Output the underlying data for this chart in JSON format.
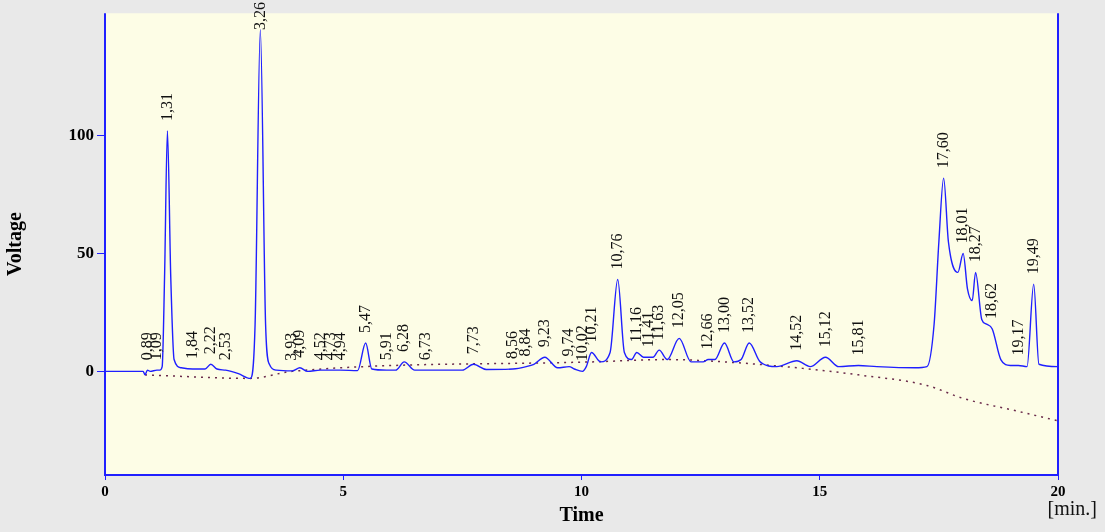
{
  "chart_data": {
    "type": "line",
    "xlabel": "Time",
    "ylabel": "Voltage",
    "xlim": [
      0,
      20
    ],
    "xticks": [
      0,
      5,
      10,
      15,
      20
    ],
    "ylim": [
      -44,
      152
    ],
    "yticks": [
      0,
      50,
      100
    ],
    "grid": false,
    "legend": false,
    "marker": "none",
    "series": [
      {
        "color": "#1f1fff",
        "line_style": "solid",
        "x": [
          0,
          0.8,
          0.84,
          0.89,
          0.95,
          1.09,
          1.15,
          1.2,
          1.25,
          1.31,
          1.38,
          1.45,
          1.6,
          1.84,
          2.1,
          2.22,
          2.35,
          2.53,
          2.8,
          3.05,
          3.15,
          3.26,
          3.37,
          3.45,
          3.6,
          3.93,
          4.09,
          4.25,
          4.52,
          4.73,
          4.94,
          5.3,
          5.47,
          5.6,
          5.91,
          6.1,
          6.28,
          6.5,
          6.73,
          7.5,
          7.73,
          8.0,
          8.56,
          8.84,
          9.0,
          9.23,
          9.5,
          9.74,
          9.85,
          10.02,
          10.1,
          10.21,
          10.4,
          10.6,
          10.76,
          10.9,
          11.05,
          11.16,
          11.3,
          11.41,
          11.5,
          11.63,
          11.8,
          12.05,
          12.3,
          12.55,
          12.66,
          12.8,
          13.0,
          13.2,
          13.35,
          13.52,
          13.75,
          14.1,
          14.52,
          14.8,
          15.12,
          15.4,
          15.81,
          16.2,
          17.0,
          17.25,
          17.4,
          17.5,
          17.6,
          17.7,
          17.9,
          18.01,
          18.1,
          18.2,
          18.27,
          18.4,
          18.5,
          18.62,
          18.8,
          19.0,
          19.17,
          19.35,
          19.49,
          19.6,
          20
        ],
        "values": [
          0,
          0,
          -1.5,
          0.5,
          0,
          0.5,
          0.5,
          2,
          40,
          102,
          40,
          5,
          1.5,
          1,
          1,
          3,
          1,
          0.5,
          -1,
          -3,
          20,
          145,
          20,
          3,
          0.5,
          0.2,
          1.5,
          0,
          0.5,
          0.5,
          0.5,
          0.3,
          12,
          1,
          0.5,
          0.5,
          4,
          0.5,
          0.5,
          0.5,
          3,
          0.8,
          1,
          2,
          3,
          6,
          1.5,
          2,
          1,
          0,
          2,
          8,
          4,
          8,
          39,
          8,
          5,
          8,
          6,
          6,
          6,
          9,
          5,
          14,
          4,
          4,
          5,
          5,
          12,
          4,
          5,
          12,
          4,
          2,
          4.5,
          2,
          6,
          2,
          2.5,
          2,
          1.5,
          2,
          20,
          55,
          82,
          55,
          42,
          50,
          35,
          30,
          42,
          22,
          20,
          18,
          5,
          2.5,
          2.5,
          2,
          37,
          3,
          2
        ]
      },
      {
        "color": "#6a2a4a",
        "line_style": "dotted",
        "x": [
          0.84,
          3.05,
          3.93,
          10.21,
          11.8,
          13.0,
          14.52,
          15.81,
          17.25,
          18.01,
          19.17,
          20
        ],
        "values": [
          -1.5,
          -3,
          0,
          4,
          5,
          4,
          1.5,
          -1.5,
          -6,
          -11.5,
          -17,
          -21
        ]
      }
    ],
    "annotations": [
      {
        "text": "0,89",
        "x": 0.89,
        "y": 0.5
      },
      {
        "text": "1,09",
        "x": 1.09,
        "y": 0.5
      },
      {
        "text": "1,31",
        "x": 1.31,
        "y": 102
      },
      {
        "text": "1,84",
        "x": 1.84,
        "y": 1
      },
      {
        "text": "2,22",
        "x": 2.22,
        "y": 3
      },
      {
        "text": "2,53",
        "x": 2.53,
        "y": 0.5
      },
      {
        "text": "3,26",
        "x": 3.26,
        "y": 145
      },
      {
        "text": "3,93",
        "x": 3.93,
        "y": 0.2
      },
      {
        "text": "4,09",
        "x": 4.09,
        "y": 1.5
      },
      {
        "text": "4,52",
        "x": 4.52,
        "y": 0.5
      },
      {
        "text": "4,73",
        "x": 4.73,
        "y": 0.5
      },
      {
        "text": "4,94",
        "x": 4.94,
        "y": 0.5
      },
      {
        "text": "5,47",
        "x": 5.47,
        "y": 12
      },
      {
        "text": "5,91",
        "x": 5.91,
        "y": 0.5
      },
      {
        "text": "6,28",
        "x": 6.28,
        "y": 4
      },
      {
        "text": "6,73",
        "x": 6.73,
        "y": 0.5
      },
      {
        "text": "7,73",
        "x": 7.73,
        "y": 3
      },
      {
        "text": "8,56",
        "x": 8.56,
        "y": 1
      },
      {
        "text": "8,84",
        "x": 8.84,
        "y": 2
      },
      {
        "text": "9,23",
        "x": 9.23,
        "y": 6
      },
      {
        "text": "9,74",
        "x": 9.74,
        "y": 2
      },
      {
        "text": "10,02",
        "x": 10.02,
        "y": 0
      },
      {
        "text": "10,21",
        "x": 10.21,
        "y": 8
      },
      {
        "text": "10,76",
        "x": 10.76,
        "y": 39
      },
      {
        "text": "11,16",
        "x": 11.16,
        "y": 8
      },
      {
        "text": "11,41",
        "x": 11.41,
        "y": 6
      },
      {
        "text": "11,63",
        "x": 11.63,
        "y": 9
      },
      {
        "text": "12,05",
        "x": 12.05,
        "y": 14
      },
      {
        "text": "12,66",
        "x": 12.66,
        "y": 5
      },
      {
        "text": "13,00",
        "x": 13.0,
        "y": 12
      },
      {
        "text": "13,52",
        "x": 13.52,
        "y": 12
      },
      {
        "text": "14,52",
        "x": 14.52,
        "y": 4.5
      },
      {
        "text": "15,12",
        "x": 15.12,
        "y": 6
      },
      {
        "text": "15,81",
        "x": 15.81,
        "y": 2.5
      },
      {
        "text": "17,60",
        "x": 17.6,
        "y": 82
      },
      {
        "text": "18,01",
        "x": 18.01,
        "y": 50
      },
      {
        "text": "18,27",
        "x": 18.27,
        "y": 42
      },
      {
        "text": "18,62",
        "x": 18.62,
        "y": 18
      },
      {
        "text": "19,17",
        "x": 19.17,
        "y": 2.5
      },
      {
        "text": "19,49",
        "x": 19.49,
        "y": 37
      },
      "[min.]"
    ]
  }
}
